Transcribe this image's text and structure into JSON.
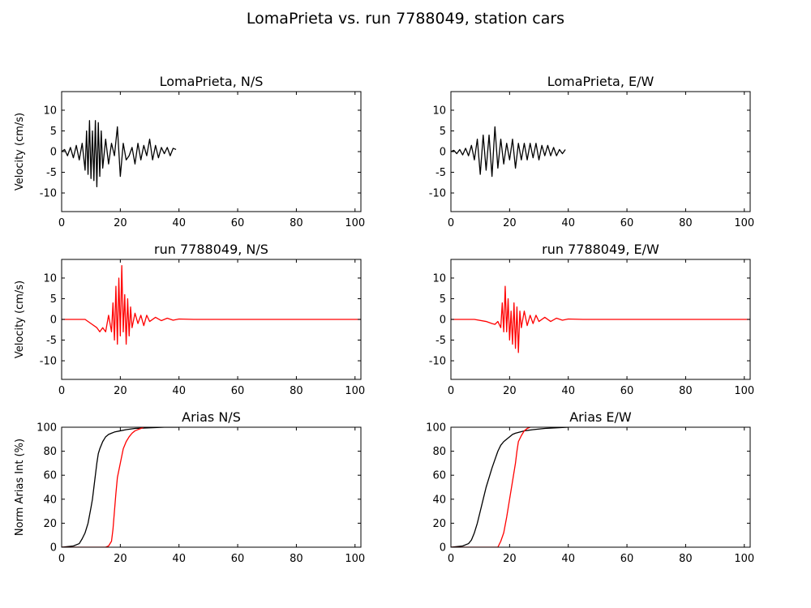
{
  "figure": {
    "title": "LomaPrieta vs. run 7788049, station cars"
  },
  "colors": {
    "observed": "#000000",
    "simulated": "#ff0000"
  },
  "chart_data": [
    {
      "id": "obs-ns",
      "type": "line",
      "title": "LomaPrieta, N/S",
      "xlabel": "",
      "ylabel": "Velocity (cm/s)",
      "xlim": [
        0,
        102
      ],
      "ylim": [
        -14.5,
        14.5
      ],
      "xticks": [
        0,
        20,
        40,
        60,
        80,
        100
      ],
      "yticks": [
        -10,
        -5,
        0,
        5,
        10
      ],
      "grid": false,
      "series": [
        {
          "color": "#000000",
          "x": [
            0,
            1,
            2,
            3,
            4,
            5,
            6,
            7,
            8,
            8.5,
            9,
            9.5,
            10,
            10.5,
            11,
            11.5,
            12,
            12.5,
            13,
            13.5,
            14,
            15,
            16,
            17,
            18,
            19,
            20,
            21,
            22,
            23,
            24,
            25,
            26,
            27,
            28,
            29,
            30,
            31,
            32,
            33,
            34,
            35,
            36,
            37,
            38,
            39
          ],
          "y": [
            0,
            0.5,
            -1,
            1,
            -1.5,
            1.5,
            -2,
            2,
            -4.5,
            5,
            -5.5,
            7.5,
            -6.5,
            5,
            -7,
            7.5,
            -8.5,
            7,
            -6,
            5,
            -4,
            3,
            -3,
            2,
            -1,
            6,
            -6,
            2,
            -2,
            -1,
            1,
            -3,
            2,
            -2,
            1.5,
            -1,
            3,
            -2,
            1.5,
            -1.5,
            1,
            -0.5,
            1,
            -1,
            0.8,
            0.5
          ]
        }
      ]
    },
    {
      "id": "obs-ew",
      "type": "line",
      "title": "LomaPrieta, E/W",
      "xlabel": "",
      "ylabel": "",
      "xlim": [
        0,
        102
      ],
      "ylim": [
        -14.5,
        14.5
      ],
      "xticks": [
        0,
        20,
        40,
        60,
        80,
        100
      ],
      "yticks": [
        -10,
        -5,
        0,
        5,
        10
      ],
      "grid": false,
      "series": [
        {
          "color": "#000000",
          "x": [
            0,
            1,
            2,
            3,
            4,
            5,
            6,
            7,
            8,
            9,
            10,
            11,
            12,
            13,
            14,
            15,
            16,
            17,
            18,
            19,
            20,
            21,
            22,
            23,
            24,
            25,
            26,
            27,
            28,
            29,
            30,
            31,
            32,
            33,
            34,
            35,
            36,
            37,
            38,
            39
          ],
          "y": [
            0,
            0.3,
            -0.5,
            0.5,
            -0.8,
            0.8,
            -1,
            1.5,
            -2,
            3,
            -5.5,
            4,
            -4.5,
            4,
            -6,
            6,
            -4,
            3,
            -3,
            2,
            -2,
            3,
            -4,
            2,
            -2,
            2,
            -2,
            2,
            -1.5,
            2,
            -2,
            1.5,
            -1,
            1.5,
            -1,
            1,
            -1,
            0.5,
            -0.5,
            0.5
          ]
        }
      ]
    },
    {
      "id": "sim-ns",
      "type": "line",
      "title": "run 7788049, N/S",
      "xlabel": "",
      "ylabel": "Velocity (cm/s)",
      "xlim": [
        0,
        102
      ],
      "ylim": [
        -14.5,
        14.5
      ],
      "xticks": [
        0,
        20,
        40,
        60,
        80,
        100
      ],
      "yticks": [
        -10,
        -5,
        0,
        5,
        10
      ],
      "grid": false,
      "series": [
        {
          "color": "#ff0000",
          "x": [
            0,
            8,
            10,
            12,
            13,
            14,
            15,
            16,
            17,
            17.5,
            18,
            18.5,
            19,
            19.5,
            20,
            20.5,
            21,
            21.5,
            22,
            22.5,
            23,
            23.5,
            24,
            25,
            26,
            27,
            28,
            29,
            30,
            32,
            34,
            36,
            38,
            40,
            45,
            102
          ],
          "y": [
            0,
            0,
            -1,
            -2,
            -3,
            -2,
            -3,
            1,
            -3,
            4,
            -5,
            8,
            -6,
            10,
            -4,
            13,
            -3,
            6,
            -6,
            5,
            -4,
            3,
            -2,
            1.5,
            -1,
            1,
            -1.5,
            1,
            -0.5,
            0.5,
            -0.3,
            0.3,
            -0.2,
            0.1,
            0,
            0
          ]
        }
      ]
    },
    {
      "id": "sim-ew",
      "type": "line",
      "title": "run 7788049, E/W",
      "xlabel": "",
      "ylabel": "",
      "xlim": [
        0,
        102
      ],
      "ylim": [
        -14.5,
        14.5
      ],
      "xticks": [
        0,
        20,
        40,
        60,
        80,
        100
      ],
      "yticks": [
        -10,
        -5,
        0,
        5,
        10
      ],
      "grid": false,
      "series": [
        {
          "color": "#ff0000",
          "x": [
            0,
            8,
            12,
            14,
            15,
            16,
            17,
            17.5,
            18,
            18.5,
            19,
            19.5,
            20,
            20.5,
            21,
            21.5,
            22,
            22.5,
            23,
            23.5,
            24,
            25,
            26,
            27,
            28,
            29,
            30,
            32,
            34,
            36,
            38,
            40,
            45,
            102
          ],
          "y": [
            0,
            0,
            -0.5,
            -1,
            -1.2,
            -0.5,
            -2,
            4,
            -3,
            8,
            -3,
            5,
            -5,
            2,
            -6,
            4,
            -7,
            3,
            -8,
            2,
            -2,
            2,
            -1.5,
            1,
            -1,
            1,
            -0.5,
            0.5,
            -0.5,
            0.3,
            -0.2,
            0.1,
            0,
            0
          ]
        }
      ]
    },
    {
      "id": "arias-ns",
      "type": "line",
      "title": "Arias N/S",
      "xlabel": "",
      "ylabel": "Norm Arias Int (%)",
      "xlim": [
        0,
        102
      ],
      "ylim": [
        0,
        100
      ],
      "xticks": [
        0,
        20,
        40,
        60,
        80,
        100
      ],
      "yticks": [
        0,
        20,
        40,
        60,
        80,
        100
      ],
      "grid": false,
      "series": [
        {
          "color": "#000000",
          "x": [
            0,
            4,
            6,
            7,
            8,
            9,
            10,
            10.5,
            11,
            11.5,
            12,
            12.5,
            13,
            14,
            15,
            16,
            17,
            18,
            20,
            22,
            25,
            30,
            35,
            40
          ],
          "y": [
            0,
            1,
            3,
            7,
            12,
            20,
            33,
            40,
            50,
            60,
            70,
            78,
            82,
            88,
            92,
            94,
            95,
            96,
            97,
            98,
            99,
            99.5,
            100,
            100
          ]
        },
        {
          "color": "#ff0000",
          "x": [
            0,
            15,
            16,
            17,
            17.5,
            18,
            18.5,
            19,
            20,
            21,
            22,
            23,
            24,
            25,
            26,
            27,
            28
          ],
          "y": [
            0,
            0,
            1,
            5,
            15,
            30,
            45,
            58,
            70,
            82,
            88,
            92,
            95,
            97,
            98,
            99,
            100
          ]
        }
      ]
    },
    {
      "id": "arias-ew",
      "type": "line",
      "title": "Arias E/W",
      "xlabel": "",
      "ylabel": "",
      "xlim": [
        0,
        102
      ],
      "ylim": [
        0,
        100
      ],
      "xticks": [
        0,
        20,
        40,
        60,
        80,
        100
      ],
      "yticks": [
        0,
        20,
        40,
        60,
        80,
        100
      ],
      "grid": false,
      "series": [
        {
          "color": "#000000",
          "x": [
            0,
            4,
            6,
            7,
            8,
            9,
            10,
            11,
            12,
            13,
            14,
            15,
            16,
            17,
            18,
            19,
            20,
            21,
            22,
            25,
            28,
            32,
            36,
            40
          ],
          "y": [
            0,
            1,
            3,
            6,
            12,
            20,
            30,
            40,
            50,
            58,
            66,
            73,
            80,
            85,
            88,
            90,
            92,
            94,
            95,
            97,
            98,
            99,
            99.5,
            100
          ]
        },
        {
          "color": "#ff0000",
          "x": [
            0,
            16,
            17,
            18,
            19,
            20,
            21,
            22,
            22.5,
            23,
            24,
            25,
            26,
            27
          ],
          "y": [
            0,
            0,
            5,
            12,
            25,
            40,
            55,
            70,
            80,
            88,
            93,
            97,
            99,
            100
          ]
        }
      ]
    }
  ]
}
